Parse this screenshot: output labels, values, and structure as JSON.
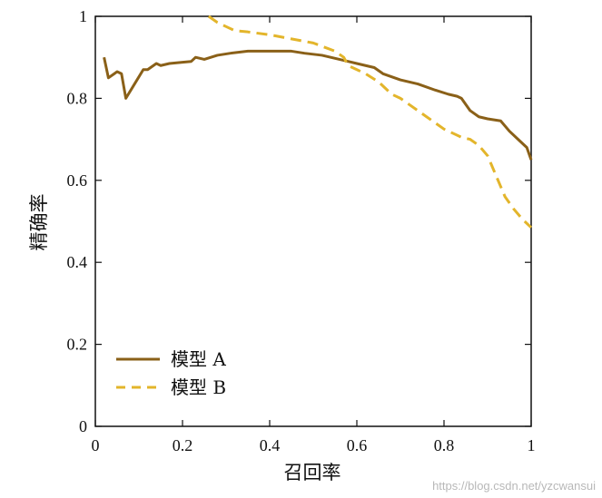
{
  "chart_data": {
    "type": "line",
    "title": "",
    "xlabel": "召回率",
    "ylabel": "精确率",
    "xlim": [
      0,
      1
    ],
    "ylim": [
      0,
      1
    ],
    "xticks": [
      "0",
      "0.2",
      "0.4",
      "0.6",
      "0.8",
      "1"
    ],
    "yticks": [
      "0",
      "0.2",
      "0.4",
      "0.6",
      "0.8",
      "1"
    ],
    "legend_position": "bottom-left",
    "grid": false,
    "colors": {
      "series_a": "#8a6018",
      "series_b": "#e3b52b"
    },
    "series": [
      {
        "name": "模型 A",
        "style": "solid",
        "x": [
          0.02,
          0.03,
          0.05,
          0.06,
          0.07,
          0.09,
          0.11,
          0.12,
          0.14,
          0.15,
          0.17,
          0.2,
          0.22,
          0.23,
          0.25,
          0.28,
          0.31,
          0.35,
          0.4,
          0.45,
          0.48,
          0.52,
          0.56,
          0.58,
          0.6,
          0.62,
          0.64,
          0.66,
          0.7,
          0.74,
          0.78,
          0.81,
          0.83,
          0.84,
          0.86,
          0.88,
          0.9,
          0.93,
          0.95,
          0.97,
          0.99,
          1.0
        ],
        "y": [
          0.9,
          0.85,
          0.865,
          0.86,
          0.8,
          0.835,
          0.87,
          0.87,
          0.885,
          0.88,
          0.885,
          0.888,
          0.89,
          0.9,
          0.895,
          0.905,
          0.91,
          0.915,
          0.915,
          0.915,
          0.91,
          0.905,
          0.895,
          0.89,
          0.885,
          0.88,
          0.875,
          0.86,
          0.845,
          0.835,
          0.82,
          0.81,
          0.805,
          0.8,
          0.77,
          0.755,
          0.75,
          0.745,
          0.72,
          0.7,
          0.68,
          0.65
        ]
      },
      {
        "name": "模型 B",
        "style": "dashed",
        "x": [
          0.26,
          0.28,
          0.3,
          0.32,
          0.35,
          0.4,
          0.45,
          0.5,
          0.55,
          0.57,
          0.58,
          0.6,
          0.62,
          0.65,
          0.68,
          0.7,
          0.72,
          0.74,
          0.76,
          0.78,
          0.8,
          0.82,
          0.84,
          0.86,
          0.88,
          0.9,
          0.92,
          0.94,
          0.96,
          0.98,
          1.0
        ],
        "y": [
          1.0,
          0.985,
          0.975,
          0.965,
          0.962,
          0.955,
          0.945,
          0.935,
          0.915,
          0.9,
          0.88,
          0.87,
          0.86,
          0.84,
          0.81,
          0.8,
          0.785,
          0.77,
          0.755,
          0.74,
          0.725,
          0.715,
          0.705,
          0.7,
          0.685,
          0.66,
          0.61,
          0.56,
          0.53,
          0.505,
          0.485
        ]
      }
    ]
  },
  "watermark": "https://blog.csdn.net/yzcwansui"
}
